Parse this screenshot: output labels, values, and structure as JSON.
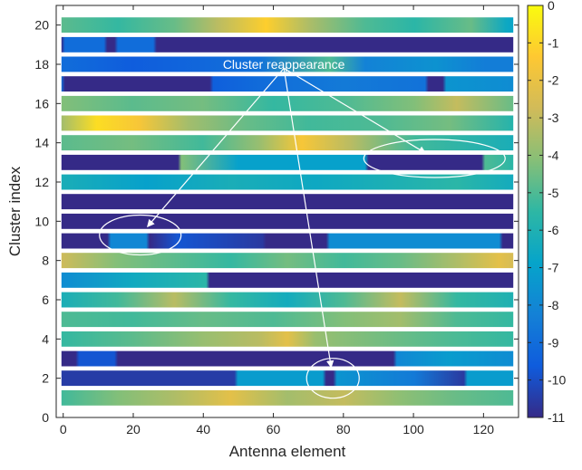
{
  "chart_data": {
    "type": "heatmap",
    "xlabel": "Antenna element",
    "ylabel": "Cluster index",
    "xlim": [
      -2,
      130
    ],
    "ylim": [
      0,
      21
    ],
    "clim": [
      -11,
      0
    ],
    "x_ticks": [
      0,
      20,
      40,
      60,
      80,
      100,
      120
    ],
    "y_ticks": [
      0,
      2,
      4,
      6,
      8,
      10,
      12,
      14,
      16,
      18,
      20
    ],
    "colorbar_ticks": [
      0,
      -1,
      -2,
      -3,
      -4,
      -5,
      -6,
      -7,
      -8,
      -9,
      -10,
      -11
    ],
    "colormap": "parula",
    "colormap_colors": [
      "#352a87",
      "#0f5cdd",
      "#1481d6",
      "#06a4ca",
      "#2eb7a4",
      "#87bf77",
      "#d1bb59",
      "#fec832",
      "#f9fb0e"
    ],
    "x_range": [
      0,
      128
    ],
    "clusters": [
      {
        "index": 1,
        "segments": [
          [
            0,
            -5.2
          ],
          [
            16,
            -4.2
          ],
          [
            32,
            -3.4
          ],
          [
            48,
            -2.2
          ],
          [
            64,
            -3.6
          ],
          [
            80,
            -3.0
          ],
          [
            96,
            -4.0
          ],
          [
            112,
            -4.6
          ],
          [
            128,
            -5.0
          ]
        ]
      },
      {
        "index": 2,
        "segments": [
          [
            0,
            -10.5
          ],
          [
            49,
            -10.5
          ],
          [
            50,
            -7.2
          ],
          [
            74,
            -7.2
          ],
          [
            75,
            -11
          ],
          [
            77,
            -11
          ],
          [
            78,
            -7.5
          ],
          [
            100,
            -8.5
          ],
          [
            114,
            -10.6
          ],
          [
            115,
            -7.2
          ],
          [
            128,
            -7.2
          ]
        ]
      },
      {
        "index": 3,
        "segments": [
          [
            0,
            -11
          ],
          [
            4,
            -11
          ],
          [
            5,
            -9.8
          ],
          [
            15,
            -9.8
          ],
          [
            16,
            -11
          ],
          [
            94,
            -11
          ],
          [
            95,
            -8
          ],
          [
            110,
            -7.2
          ],
          [
            128,
            -7.8
          ]
        ]
      },
      {
        "index": 4,
        "segments": [
          [
            0,
            -5.4
          ],
          [
            20,
            -4.8
          ],
          [
            40,
            -3.8
          ],
          [
            56,
            -3.2
          ],
          [
            64,
            -2.2
          ],
          [
            72,
            -3.8
          ],
          [
            90,
            -4.4
          ],
          [
            110,
            -5.0
          ],
          [
            128,
            -5.4
          ]
        ]
      },
      {
        "index": 5,
        "segments": [
          [
            0,
            -5.0
          ],
          [
            20,
            -5.2
          ],
          [
            40,
            -4.6
          ],
          [
            60,
            -5.0
          ],
          [
            80,
            -4.2
          ],
          [
            96,
            -3.6
          ],
          [
            112,
            -5.0
          ],
          [
            128,
            -5.4
          ]
        ]
      },
      {
        "index": 6,
        "segments": [
          [
            0,
            -6.2
          ],
          [
            16,
            -5.2
          ],
          [
            32,
            -3.2
          ],
          [
            48,
            -5.4
          ],
          [
            64,
            -6.4
          ],
          [
            80,
            -5.0
          ],
          [
            96,
            -3.0
          ],
          [
            112,
            -5.4
          ],
          [
            128,
            -6.0
          ]
        ]
      },
      {
        "index": 7,
        "segments": [
          [
            0,
            -7.8
          ],
          [
            20,
            -6.5
          ],
          [
            41,
            -5.6
          ],
          [
            42,
            -11
          ],
          [
            128,
            -11
          ]
        ]
      },
      {
        "index": 8,
        "segments": [
          [
            0,
            -2.8
          ],
          [
            16,
            -4.2
          ],
          [
            32,
            -4.8
          ],
          [
            48,
            -5.4
          ],
          [
            64,
            -4.4
          ],
          [
            80,
            -5.2
          ],
          [
            96,
            -4.6
          ],
          [
            112,
            -3.4
          ],
          [
            124,
            -2.2
          ],
          [
            128,
            -2.6
          ]
        ]
      },
      {
        "index": 9,
        "segments": [
          [
            0,
            -11
          ],
          [
            13,
            -11
          ],
          [
            14,
            -8
          ],
          [
            24,
            -8
          ],
          [
            25,
            -11
          ],
          [
            33,
            -9.8
          ],
          [
            57,
            -10.6
          ],
          [
            58,
            -11
          ],
          [
            75,
            -11
          ],
          [
            76,
            -7.8
          ],
          [
            124,
            -7.8
          ],
          [
            125,
            -11
          ],
          [
            128,
            -11
          ]
        ]
      },
      {
        "index": 10,
        "segments": [
          [
            0,
            -11
          ],
          [
            128,
            -11
          ]
        ]
      },
      {
        "index": 11,
        "segments": [
          [
            0,
            -11
          ],
          [
            128,
            -11
          ]
        ]
      },
      {
        "index": 12,
        "segments": [
          [
            0,
            -6.2
          ],
          [
            24,
            -7.0
          ],
          [
            48,
            -6.2
          ],
          [
            72,
            -6.6
          ],
          [
            96,
            -6.0
          ],
          [
            112,
            -5.6
          ],
          [
            128,
            -6.4
          ]
        ]
      },
      {
        "index": 13,
        "segments": [
          [
            0,
            -11
          ],
          [
            33,
            -11
          ],
          [
            34,
            -4.2
          ],
          [
            50,
            -7.0
          ],
          [
            86,
            -7.0
          ],
          [
            87,
            -11
          ],
          [
            119,
            -11
          ],
          [
            120,
            -5
          ],
          [
            128,
            -5.6
          ]
        ]
      },
      {
        "index": 14,
        "segments": [
          [
            0,
            -4.8
          ],
          [
            20,
            -4.4
          ],
          [
            40,
            -5.2
          ],
          [
            56,
            -3.8
          ],
          [
            68,
            -1.6
          ],
          [
            82,
            -3.2
          ],
          [
            100,
            -5.2
          ],
          [
            128,
            -6.2
          ]
        ]
      },
      {
        "index": 15,
        "segments": [
          [
            0,
            -3.6
          ],
          [
            10,
            -0.8
          ],
          [
            22,
            -1.6
          ],
          [
            36,
            -3.6
          ],
          [
            52,
            -4.6
          ],
          [
            70,
            -5.2
          ],
          [
            90,
            -5.0
          ],
          [
            110,
            -4.4
          ],
          [
            128,
            -5.8
          ]
        ]
      },
      {
        "index": 16,
        "segments": [
          [
            0,
            -4.2
          ],
          [
            20,
            -4.8
          ],
          [
            40,
            -4.4
          ],
          [
            60,
            -5.4
          ],
          [
            80,
            -5.0
          ],
          [
            100,
            -4.2
          ],
          [
            112,
            -3.0
          ],
          [
            128,
            -4.6
          ]
        ]
      },
      {
        "index": 17,
        "segments": [
          [
            0,
            -9.0
          ],
          [
            1,
            -11
          ],
          [
            42,
            -11
          ],
          [
            43,
            -9.5
          ],
          [
            58,
            -9.0
          ],
          [
            80,
            -8.5
          ],
          [
            103,
            -8.8
          ],
          [
            104,
            -11
          ],
          [
            108,
            -11
          ],
          [
            109,
            -7.5
          ],
          [
            128,
            -7.8
          ]
        ]
      },
      {
        "index": 18,
        "segments": [
          [
            0,
            -9.0
          ],
          [
            20,
            -9.6
          ],
          [
            40,
            -9.2
          ],
          [
            56,
            -8.8
          ],
          [
            76,
            -5.0
          ],
          [
            86,
            -8.2
          ],
          [
            106,
            -7.6
          ],
          [
            120,
            -8.4
          ],
          [
            128,
            -8.4
          ]
        ]
      },
      {
        "index": 19,
        "segments": [
          [
            0,
            -11
          ],
          [
            1,
            -9
          ],
          [
            12,
            -9
          ],
          [
            13,
            -11
          ],
          [
            15,
            -11
          ],
          [
            16,
            -9
          ],
          [
            26,
            -9
          ],
          [
            27,
            -11
          ],
          [
            128,
            -11
          ]
        ]
      },
      {
        "index": 20,
        "segments": [
          [
            0,
            -4.8
          ],
          [
            16,
            -5.4
          ],
          [
            32,
            -4.6
          ],
          [
            44,
            -3.2
          ],
          [
            58,
            -1.2
          ],
          [
            70,
            -3.4
          ],
          [
            86,
            -5.0
          ],
          [
            100,
            -5.6
          ],
          [
            116,
            -4.6
          ],
          [
            126,
            -6.6
          ],
          [
            128,
            -6.8
          ]
        ]
      }
    ],
    "annotations": [
      {
        "text": "Cluster reappearance",
        "anchor": [
          63,
          17.8
        ],
        "ellipses": [
          [
            22,
            9.3
          ],
          [
            77,
            2.0
          ],
          [
            106,
            13.2
          ]
        ]
      }
    ]
  }
}
